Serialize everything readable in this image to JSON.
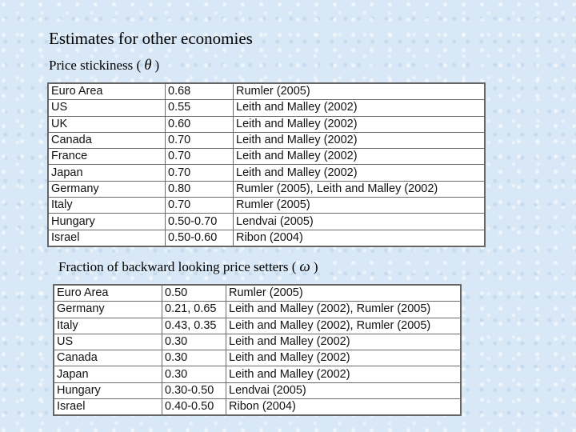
{
  "title": "Estimates for other economies",
  "section1": {
    "caption": "Price stickiness (",
    "symbol": "θ",
    "caption_end": ")",
    "rows": [
      [
        "Euro Area",
        "0.68",
        "Rumler (2005)"
      ],
      [
        "US",
        "0.55",
        "Leith and Malley (2002)"
      ],
      [
        "UK",
        "0.60",
        "Leith and Malley (2002)"
      ],
      [
        "Canada",
        "0.70",
        "Leith and Malley (2002)"
      ],
      [
        "France",
        "0.70",
        "Leith and Malley (2002)"
      ],
      [
        "Japan",
        "0.70",
        "Leith and Malley (2002)"
      ],
      [
        "Germany",
        "0.80",
        "Rumler (2005), Leith and Malley (2002)"
      ],
      [
        "Italy",
        "0.70",
        "Rumler (2005)"
      ],
      [
        "Hungary",
        "0.50-0.70",
        "Lendvai (2005)"
      ],
      [
        "Israel",
        "0.50-0.60",
        "Ribon (2004)"
      ]
    ]
  },
  "section2": {
    "caption": "Fraction of backward looking price setters (",
    "symbol": "ω",
    "caption_end": ")",
    "rows": [
      [
        "Euro Area",
        "0.50",
        "Rumler (2005)"
      ],
      [
        "Germany",
        "0.21, 0.65",
        "Leith and Malley (2002), Rumler (2005)"
      ],
      [
        "Italy",
        "0.43, 0.35",
        "Leith and Malley (2002), Rumler (2005)"
      ],
      [
        "US",
        "0.30",
        "Leith and Malley (2002)"
      ],
      [
        "Canada",
        "0.30",
        "Leith and Malley (2002)"
      ],
      [
        "Japan",
        "0.30",
        "Leith and Malley (2002)"
      ],
      [
        "Hungary",
        "0.30-0.50",
        "Lendvai (2005)"
      ],
      [
        "Israel",
        "0.40-0.50",
        "Ribon (2004)"
      ]
    ]
  }
}
